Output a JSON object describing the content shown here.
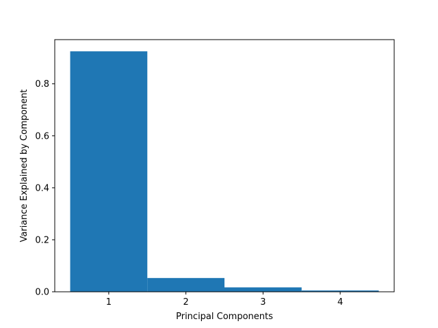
{
  "chart_data": {
    "type": "bar",
    "title": "",
    "xlabel": "Principal Components",
    "ylabel": "Variance Explained by Component",
    "categories": [
      "1",
      "2",
      "3",
      "4"
    ],
    "values": [
      0.925,
      0.053,
      0.017,
      0.005
    ],
    "ylim": [
      0,
      0.97
    ],
    "yticks": [
      0.0,
      0.2,
      0.4,
      0.6,
      0.8
    ],
    "ytick_labels": [
      "0.0",
      "0.2",
      "0.4",
      "0.6",
      "0.8"
    ],
    "grid": false,
    "legend": "none",
    "bar_color": "#1f77b4"
  }
}
